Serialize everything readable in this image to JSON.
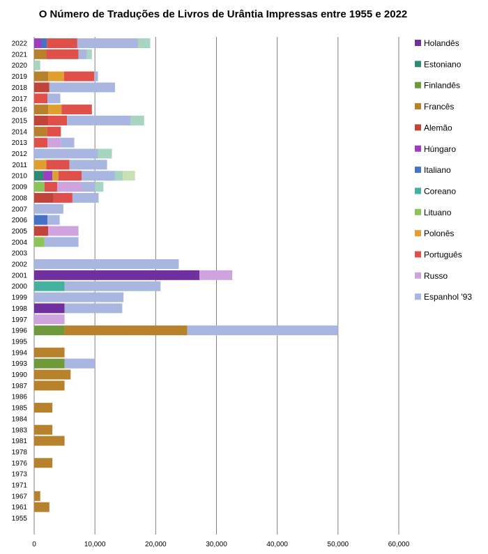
{
  "chart_data": {
    "type": "bar",
    "orientation": "horizontal",
    "stacked": true,
    "title": "O Número de Traduções de Livros de Urântia Impressas entre 1955 e 2022",
    "xlim": [
      0,
      60000
    ],
    "x_ticks": [
      "0",
      "10,000",
      "20,000",
      "30,000",
      "40,000",
      "50,000",
      "60,000"
    ],
    "x_tick_values": [
      0,
      10000,
      20000,
      30000,
      40000,
      50000,
      60000
    ],
    "grid": true,
    "legend_position": "right",
    "legend": [
      {
        "name": "Holandês",
        "color": "#7030a0"
      },
      {
        "name": "Estoniano",
        "color": "#2e8b72"
      },
      {
        "name": "Finlandês",
        "color": "#6e9a3c"
      },
      {
        "name": "Francês",
        "color": "#b8812c"
      },
      {
        "name": "Alemão",
        "color": "#c0443a"
      },
      {
        "name": "Húngaro",
        "color": "#9b3fc0"
      },
      {
        "name": "Italiano",
        "color": "#4472c4"
      },
      {
        "name": "Coreano",
        "color": "#44b09e"
      },
      {
        "name": "Lituano",
        "color": "#8cc45a"
      },
      {
        "name": "Polonês",
        "color": "#e0a030"
      },
      {
        "name": "Português",
        "color": "#e0504a"
      },
      {
        "name": "Russo",
        "color": "#cfa3dd"
      },
      {
        "name": "Espanhol '93",
        "color": "#a9b7e0"
      }
    ],
    "categories": [
      "2022",
      "2021",
      "2020",
      "2019",
      "2018",
      "2017",
      "2016",
      "2015",
      "2014",
      "2013",
      "2012",
      "2011",
      "2010",
      "2009",
      "2008",
      "2007",
      "2006",
      "2005",
      "2004",
      "2003",
      "2002",
      "2001",
      "2000",
      "1999",
      "1998",
      "1997",
      "1996",
      "1995",
      "1994",
      "1993",
      "1990",
      "1987",
      "1986",
      "1985",
      "1984",
      "1983",
      "1981",
      "1978",
      "1976",
      "1973",
      "1971",
      "1967",
      "1961",
      "1955"
    ],
    "bars": [
      {
        "year": "2022",
        "segments": [
          {
            "c": "#9b3fc0",
            "v": 1200
          },
          {
            "c": "#4472c4",
            "v": 900
          },
          {
            "c": "#e0504a",
            "v": 5000
          },
          {
            "c": "#a9b7e0",
            "v": 10000
          },
          {
            "c": "#a8d5c0",
            "v": 2000
          }
        ]
      },
      {
        "year": "2021",
        "segments": [
          {
            "c": "#b8812c",
            "v": 2000
          },
          {
            "c": "#e0504a",
            "v": 5300
          },
          {
            "c": "#a9b7e0",
            "v": 1400
          },
          {
            "c": "#a8d5c0",
            "v": 800
          }
        ]
      },
      {
        "year": "2020",
        "segments": [
          {
            "c": "#a8d5c0",
            "v": 1000
          }
        ]
      },
      {
        "year": "2019",
        "segments": [
          {
            "c": "#b8812c",
            "v": 2300
          },
          {
            "c": "#e0a030",
            "v": 2600
          },
          {
            "c": "#e0504a",
            "v": 5000
          },
          {
            "c": "#a9b7e0",
            "v": 600
          }
        ]
      },
      {
        "year": "2018",
        "segments": [
          {
            "c": "#c0443a",
            "v": 2500
          },
          {
            "c": "#a9b7e0",
            "v": 10800
          }
        ]
      },
      {
        "year": "2017",
        "segments": [
          {
            "c": "#e0504a",
            "v": 2200
          },
          {
            "c": "#a9b7e0",
            "v": 2100
          }
        ]
      },
      {
        "year": "2016",
        "segments": [
          {
            "c": "#b8812c",
            "v": 2300
          },
          {
            "c": "#e0a030",
            "v": 2200
          },
          {
            "c": "#e0504a",
            "v": 5000
          }
        ]
      },
      {
        "year": "2015",
        "segments": [
          {
            "c": "#c0443a",
            "v": 2300
          },
          {
            "c": "#e0504a",
            "v": 3100
          },
          {
            "c": "#a9b7e0",
            "v": 10500
          },
          {
            "c": "#a8d5c0",
            "v": 2200
          }
        ]
      },
      {
        "year": "2014",
        "segments": [
          {
            "c": "#b8812c",
            "v": 2100
          },
          {
            "c": "#e0504a",
            "v": 2300
          }
        ]
      },
      {
        "year": "2013",
        "segments": [
          {
            "c": "#e0504a",
            "v": 2200
          },
          {
            "c": "#cfa3dd",
            "v": 2200
          },
          {
            "c": "#a9b7e0",
            "v": 2200
          }
        ]
      },
      {
        "year": "2012",
        "segments": [
          {
            "c": "#a9b7e0",
            "v": 10500
          },
          {
            "c": "#a8d5c0",
            "v": 2300
          }
        ]
      },
      {
        "year": "2011",
        "segments": [
          {
            "c": "#e0a030",
            "v": 2000
          },
          {
            "c": "#e0504a",
            "v": 3800
          },
          {
            "c": "#a9b7e0",
            "v": 6200
          }
        ]
      },
      {
        "year": "2010",
        "segments": [
          {
            "c": "#2e8b72",
            "v": 1500
          },
          {
            "c": "#9b3fc0",
            "v": 1500
          },
          {
            "c": "#e0a030",
            "v": 1000
          },
          {
            "c": "#e0504a",
            "v": 3800
          },
          {
            "c": "#a9b7e0",
            "v": 5500
          },
          {
            "c": "#a8d5c0",
            "v": 1300
          },
          {
            "c": "#c9e0b4",
            "v": 2000
          }
        ]
      },
      {
        "year": "2009",
        "segments": [
          {
            "c": "#8cc45a",
            "v": 1700
          },
          {
            "c": "#e0504a",
            "v": 2100
          },
          {
            "c": "#cfa3dd",
            "v": 4000
          },
          {
            "c": "#a9b7e0",
            "v": 2200
          },
          {
            "c": "#a8d5c0",
            "v": 1400
          }
        ]
      },
      {
        "year": "2008",
        "segments": [
          {
            "c": "#c0443a",
            "v": 3200
          },
          {
            "c": "#e0504a",
            "v": 3100
          },
          {
            "c": "#a9b7e0",
            "v": 4300
          }
        ]
      },
      {
        "year": "2007",
        "segments": [
          {
            "c": "#a9b7e0",
            "v": 4800
          }
        ]
      },
      {
        "year": "2006",
        "segments": [
          {
            "c": "#4472c4",
            "v": 2200
          },
          {
            "c": "#a9b7e0",
            "v": 2000
          }
        ]
      },
      {
        "year": "2005",
        "segments": [
          {
            "c": "#c0443a",
            "v": 2300
          },
          {
            "c": "#cfa3dd",
            "v": 5000
          }
        ]
      },
      {
        "year": "2004",
        "segments": [
          {
            "c": "#8cc45a",
            "v": 1700
          },
          {
            "c": "#a9b7e0",
            "v": 5600
          }
        ]
      },
      {
        "year": "2003",
        "segments": []
      },
      {
        "year": "2002",
        "segments": [
          {
            "c": "#a9b7e0",
            "v": 23800
          }
        ]
      },
      {
        "year": "2001",
        "segments": [
          {
            "c": "#7030a0",
            "v": 27200
          },
          {
            "c": "#cfa3dd",
            "v": 5400
          }
        ]
      },
      {
        "year": "2000",
        "segments": [
          {
            "c": "#44b09e",
            "v": 5000
          },
          {
            "c": "#a9b7e0",
            "v": 15800
          }
        ]
      },
      {
        "year": "1999",
        "segments": [
          {
            "c": "#a9b7e0",
            "v": 14700
          }
        ]
      },
      {
        "year": "1998",
        "segments": [
          {
            "c": "#7030a0",
            "v": 5000
          },
          {
            "c": "#a9b7e0",
            "v": 9500
          }
        ]
      },
      {
        "year": "1997",
        "segments": [
          {
            "c": "#cfa3dd",
            "v": 5000
          }
        ]
      },
      {
        "year": "1996",
        "segments": [
          {
            "c": "#6e9a3c",
            "v": 5000
          },
          {
            "c": "#b8812c",
            "v": 20200
          },
          {
            "c": "#a9b7e0",
            "v": 24800
          }
        ]
      },
      {
        "year": "1995",
        "segments": []
      },
      {
        "year": "1994",
        "segments": [
          {
            "c": "#b8812c",
            "v": 5000
          }
        ]
      },
      {
        "year": "1993",
        "segments": [
          {
            "c": "#6e9a3c",
            "v": 5000
          },
          {
            "c": "#a9b7e0",
            "v": 5000
          }
        ]
      },
      {
        "year": "1990",
        "segments": [
          {
            "c": "#b8812c",
            "v": 6000
          }
        ]
      },
      {
        "year": "1987",
        "segments": [
          {
            "c": "#b8812c",
            "v": 5000
          }
        ]
      },
      {
        "year": "1986",
        "segments": []
      },
      {
        "year": "1985",
        "segments": [
          {
            "c": "#b8812c",
            "v": 3000
          }
        ]
      },
      {
        "year": "1984",
        "segments": []
      },
      {
        "year": "1983",
        "segments": [
          {
            "c": "#b8812c",
            "v": 3000
          }
        ]
      },
      {
        "year": "1981",
        "segments": [
          {
            "c": "#b8812c",
            "v": 5000
          }
        ]
      },
      {
        "year": "1978",
        "segments": []
      },
      {
        "year": "1976",
        "segments": [
          {
            "c": "#b8812c",
            "v": 3000
          }
        ]
      },
      {
        "year": "1973",
        "segments": []
      },
      {
        "year": "1971",
        "segments": []
      },
      {
        "year": "1967",
        "segments": [
          {
            "c": "#b8812c",
            "v": 1000
          }
        ]
      },
      {
        "year": "1961",
        "segments": [
          {
            "c": "#b8812c",
            "v": 2500
          }
        ]
      },
      {
        "year": "1955",
        "segments": []
      }
    ]
  }
}
